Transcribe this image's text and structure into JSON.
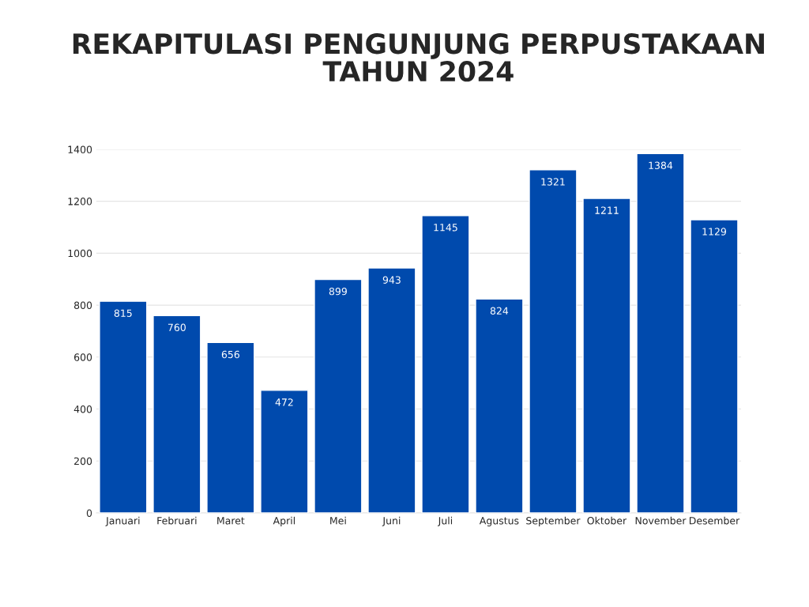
{
  "chart_data": {
    "type": "bar",
    "title": "REKAPITULASI PENGUNJUNG PERPUSTAKAAN\nTAHUN 2024",
    "categories": [
      "Januari",
      "Februari",
      "Maret",
      "April",
      "Mei",
      "Juni",
      "Juli",
      "Agustus",
      "September",
      "Oktober",
      "November",
      "Desember"
    ],
    "values": [
      815,
      760,
      656,
      472,
      899,
      943,
      1145,
      824,
      1321,
      1211,
      1384,
      1129
    ],
    "color": "#004aad",
    "ylim": [
      0,
      1400
    ],
    "yticks": [
      0,
      200,
      400,
      600,
      800,
      1000,
      1200,
      1400
    ],
    "grid": "y",
    "data_labels": true
  }
}
